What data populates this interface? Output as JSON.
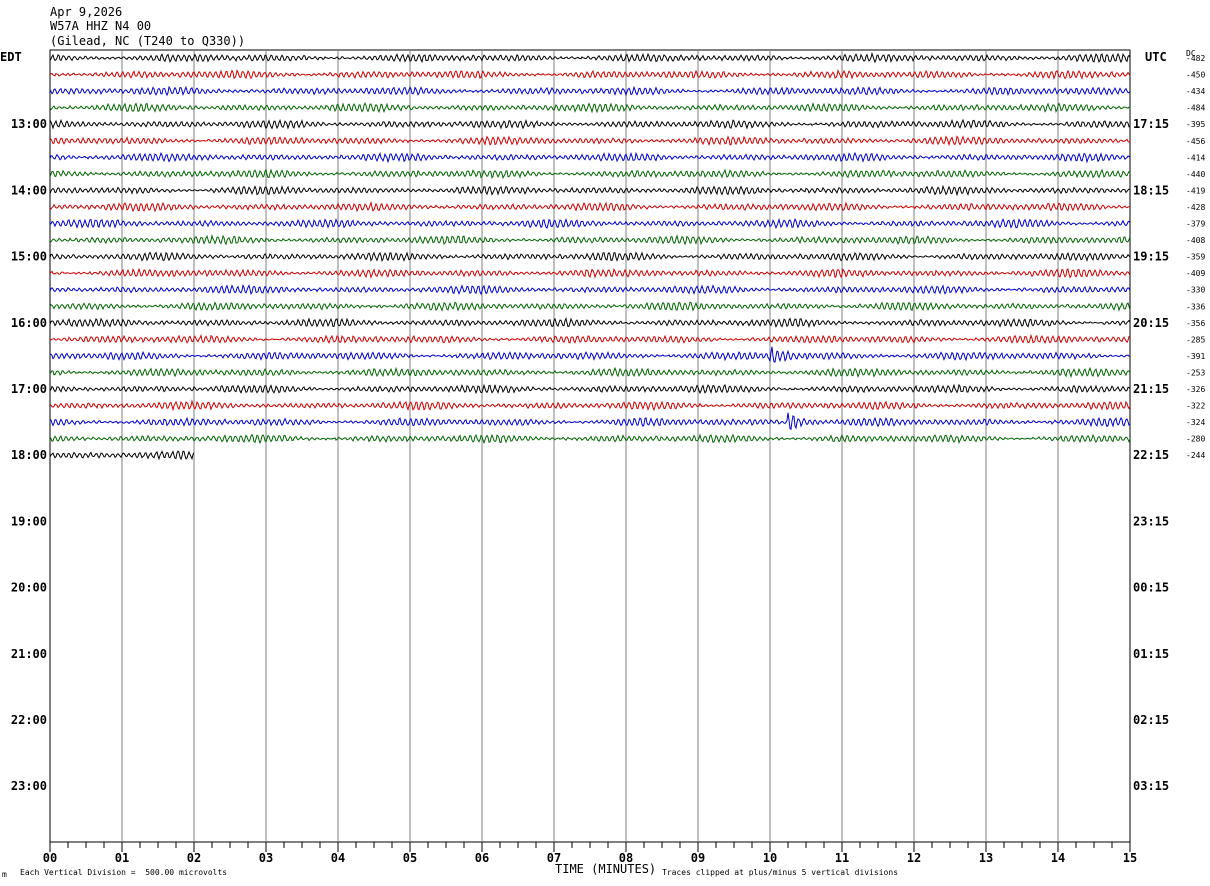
{
  "header": {
    "date": "Apr 9,2026",
    "station": "W57A HHZ N4 00",
    "location": "(Gilead, NC (T240 to Q330))"
  },
  "left_axis_label": "EDT",
  "right_axis_label": "UTC",
  "dc_header": "DC",
  "footer": {
    "scale_note": "Each Vertical Division =  500.00 microvolts",
    "xlabel": "TIME (MINUTES)",
    "clip_note": "Traces clipped at plus/minus 5 vertical divisions",
    "corner_mark": "m"
  },
  "colors": {
    "black": "#000000",
    "red": "#cc0000",
    "blue": "#0000cc",
    "green": "#006600",
    "grid": "#808080"
  },
  "chart_data": {
    "type": "line",
    "title": "Apr 9,2026 W57A HHZ N4 00 (Gilead, NC (T240 to Q330))",
    "xlabel": "TIME (MINUTES)",
    "x_ticks": [
      "00",
      "01",
      "02",
      "03",
      "04",
      "05",
      "06",
      "07",
      "08",
      "09",
      "10",
      "11",
      "12",
      "13",
      "14",
      "15"
    ],
    "xlim": [
      0,
      15
    ],
    "left_hour_labels": [
      "13:00",
      "14:00",
      "15:00",
      "16:00",
      "17:00",
      "18:00",
      "19:00",
      "20:00",
      "21:00",
      "22:00",
      "23:00"
    ],
    "right_hour_labels": [
      "17:15",
      "18:15",
      "19:15",
      "20:15",
      "21:15",
      "22:15",
      "23:15",
      "00:15",
      "01:15",
      "02:15",
      "03:15"
    ],
    "trace_minutes_per_line": 15,
    "trace_count": 25,
    "trace_colors": [
      "black",
      "red",
      "blue",
      "green"
    ],
    "dc_offsets": [
      "-482",
      "-450",
      "-434",
      "-484",
      "-395",
      "-456",
      "-414",
      "-440",
      "-419",
      "-428",
      "-379",
      "-408",
      "-359",
      "-409",
      "-330",
      "-336",
      "-356",
      "-285",
      "-391",
      "-253",
      "-326",
      "-322",
      "-324",
      "-280",
      "-244"
    ],
    "events": [
      {
        "trace": 18,
        "start_minute": 10.0,
        "end_minute": 10.4
      },
      {
        "trace": 22,
        "start_minute": 10.25,
        "end_minute": 10.7
      }
    ],
    "last_trace_end_minute": 2.0,
    "grid": true
  }
}
